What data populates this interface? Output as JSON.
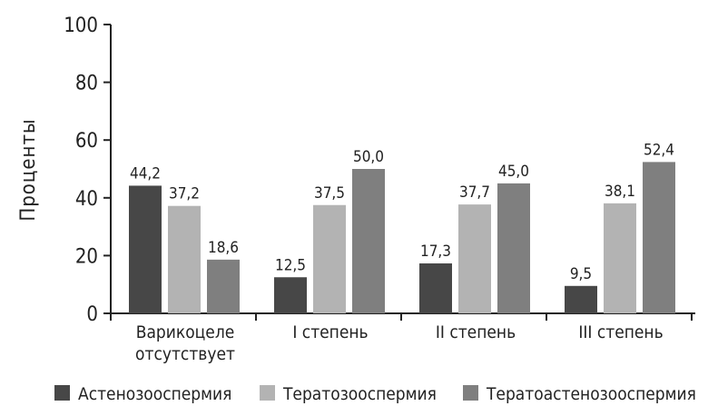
{
  "chart_data": {
    "type": "bar",
    "ylabel": "Проценты",
    "xlabel": "",
    "ylim": [
      0,
      100
    ],
    "yticks": [
      0,
      20,
      40,
      60,
      80,
      100
    ],
    "grid": false,
    "legend_position": "bottom",
    "categories": [
      [
        "Варикоцеле",
        "отсутствует"
      ],
      [
        "I степень"
      ],
      [
        "II степень"
      ],
      [
        "III степень"
      ]
    ],
    "series": [
      {
        "name": "Астенозооспермия",
        "color": "#474747",
        "values": [
          44.2,
          12.5,
          17.3,
          9.5
        ],
        "labels": [
          "44,2",
          "12,5",
          "17,3",
          "9,5"
        ]
      },
      {
        "name": "Тератозооспермия",
        "color": "#b3b3b3",
        "values": [
          37.2,
          37.5,
          37.7,
          38.1
        ],
        "labels": [
          "37,2",
          "37,5",
          "37,7",
          "38,1"
        ]
      },
      {
        "name": "Тератоастенозооспермия",
        "color": "#7f7f7f",
        "values": [
          18.6,
          50.0,
          45.0,
          52.4
        ],
        "labels": [
          "18,6",
          "50,0",
          "45,0",
          "52,4"
        ]
      }
    ]
  }
}
